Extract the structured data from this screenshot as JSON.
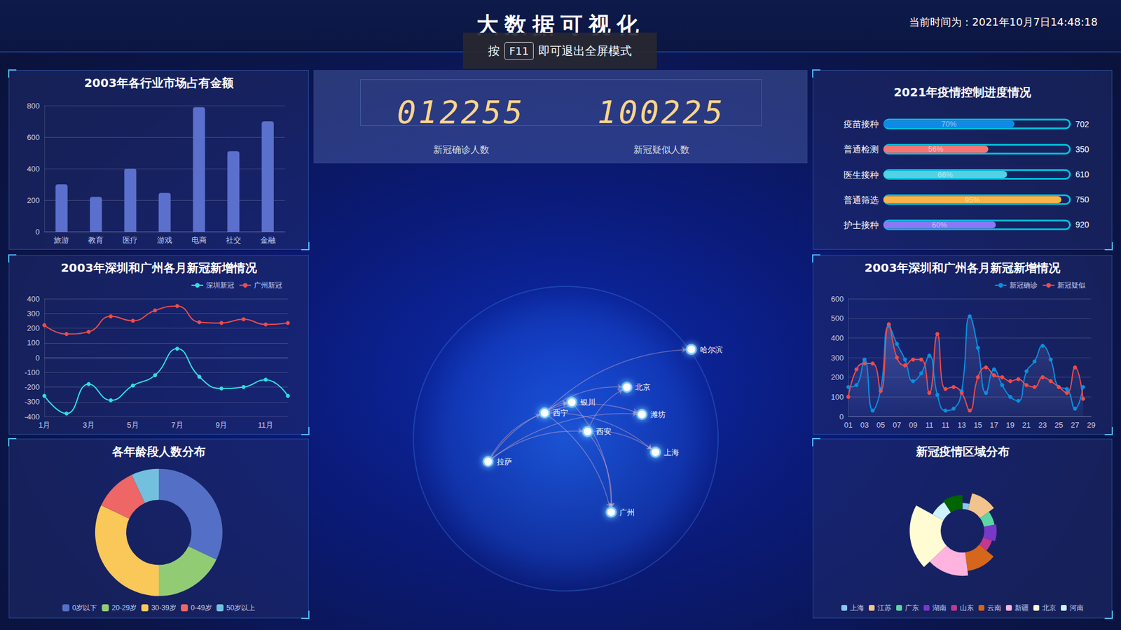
{
  "header": {
    "title": "大数据可视化",
    "time_label": "当前时间为：",
    "time": "2021年10月7日14:48:18",
    "notice": [
      "按",
      "F11",
      "即可退出全屏模式"
    ]
  },
  "counters": [
    {
      "value": "012255",
      "label": "新冠确诊人数"
    },
    {
      "value": "100225",
      "label": "新冠疑似人数"
    }
  ],
  "map": {
    "cities": [
      "哈尔滨",
      "北京",
      "银川",
      "西宁",
      "潍坊",
      "西安",
      "上海",
      "拉萨",
      "广州"
    ],
    "routes": [
      [
        "西宁",
        "哈尔滨"
      ],
      [
        "西宁",
        "北京"
      ],
      [
        "西宁",
        "银川"
      ],
      [
        "西宁",
        "潍坊"
      ],
      [
        "西宁",
        "上海"
      ],
      [
        "西宁",
        "广州"
      ],
      [
        "拉萨",
        "西宁"
      ],
      [
        "拉萨",
        "西安"
      ],
      [
        "拉萨",
        "银川"
      ],
      [
        "拉萨",
        "潍坊"
      ],
      [
        "西安",
        "北京"
      ],
      [
        "西安",
        "上海"
      ],
      [
        "西安",
        "广州"
      ],
      [
        "银川",
        "广州"
      ]
    ]
  },
  "chart_data": [
    {
      "type": "bar",
      "title": "2003年各行业市场占有金额",
      "categories": [
        "旅游",
        "教育",
        "医疗",
        "游戏",
        "电商",
        "社交",
        "金融"
      ],
      "values": [
        300,
        220,
        400,
        245,
        790,
        510,
        700
      ],
      "color": "#5b6fcc",
      "ylim": [
        0,
        800
      ],
      "yticks": [
        0,
        200,
        400,
        600,
        800
      ],
      "grid": true
    },
    {
      "type": "line",
      "title": "2003年深圳和广州各月新冠新增情况",
      "categories": [
        "1月",
        null,
        "3月",
        null,
        "5月",
        null,
        "7月",
        null,
        "9月",
        null,
        "11月",
        null
      ],
      "series": [
        {
          "name": "深圳新冠",
          "color": "#2fe0e0",
          "values": [
            -260,
            -380,
            -180,
            -290,
            -190,
            -120,
            60,
            -130,
            -210,
            -200,
            -150,
            -260
          ]
        },
        {
          "name": "广州新冠",
          "color": "#ef4b4b",
          "values": [
            220,
            160,
            175,
            280,
            250,
            320,
            350,
            240,
            235,
            260,
            225,
            235
          ]
        }
      ],
      "ylim": [
        -400,
        400
      ],
      "yticks": [
        -400,
        -300,
        -200,
        -100,
        0,
        100,
        200,
        300,
        400
      ],
      "grid": true,
      "legend": "top-right",
      "marker": "circle",
      "line_style": "smooth"
    },
    {
      "type": "pie",
      "title": "各年龄段人数分布",
      "categories": [
        "0岁以下",
        "20-29岁",
        "30-39岁",
        "0-49岁",
        "50岁以上"
      ],
      "values": [
        32,
        18,
        32,
        11,
        7
      ],
      "colors": [
        "#5470c6",
        "#91cc75",
        "#fac858",
        "#ee6666",
        "#73c0de"
      ],
      "legend": "bottom"
    },
    {
      "type": "bar",
      "orientation": "horizontal",
      "title": "2021年疫情控制进度情况",
      "categories": [
        "疫苗接种",
        "普通检测",
        "医生接种",
        "普通筛选",
        "护士接种"
      ],
      "values": [
        70,
        56,
        66,
        95,
        60
      ],
      "value_labels": [
        "70%",
        "56%",
        "66%",
        "95%",
        "60%"
      ],
      "data_labels": true,
      "totals": [
        702,
        350,
        610,
        750,
        920
      ],
      "colors": [
        "#1089e7",
        "#f57474",
        "#56d0e3",
        "#f8b448",
        "#8b78f6"
      ],
      "xlim": [
        0,
        100
      ],
      "tick_labels": "y",
      "grid": false
    },
    {
      "type": "line",
      "title": "2003年深圳和广州各月新冠新增情况",
      "categories": [
        "01",
        null,
        "03",
        null,
        "05",
        null,
        "07",
        null,
        "09",
        null,
        "11",
        null,
        "11",
        null,
        "13",
        null,
        "15",
        null,
        "17",
        null,
        "19",
        null,
        "21",
        null,
        "23",
        null,
        "25",
        null,
        "27",
        null,
        "29"
      ],
      "series": [
        {
          "name": "新冠确诊",
          "color": "#0b8fe0",
          "values": [
            150,
            160,
            290,
            30,
            140,
            460,
            370,
            290,
            180,
            220,
            310,
            110,
            30,
            40,
            130,
            510,
            350,
            120,
            240,
            160,
            100,
            80,
            230,
            280,
            360,
            290,
            150,
            140,
            40,
            150,
            null
          ]
        },
        {
          "name": "新冠疑似",
          "color": "#ef4b4b",
          "values": [
            100,
            240,
            270,
            270,
            130,
            470,
            300,
            260,
            290,
            290,
            120,
            420,
            140,
            150,
            120,
            30,
            200,
            250,
            210,
            200,
            180,
            190,
            160,
            150,
            200,
            180,
            150,
            120,
            250,
            90,
            null
          ]
        }
      ],
      "ylim": [
        0,
        600
      ],
      "yticks": [
        0,
        100,
        200,
        300,
        400,
        500,
        600
      ],
      "grid": true,
      "legend": "top-right",
      "marker": "circle",
      "line_style": "smooth"
    },
    {
      "type": "pie",
      "title": "新冠疫情区域分布",
      "categories": [
        "上海",
        "江苏",
        "广东",
        "湖南",
        "山东",
        "云南",
        "新疆",
        "北京",
        "河南",
        null
      ],
      "values": [
        4,
        11,
        7,
        8,
        6,
        12,
        15,
        20,
        8,
        9
      ],
      "colors": [
        "#8bc6f7",
        "#f2c38c",
        "#5cd6a4",
        "#7a38c6",
        "#c2398e",
        "#d5661c",
        "#ffb3de",
        "#fffcd4",
        "#cdf3ff",
        "#006400"
      ],
      "legend": "bottom",
      "marker": "rose"
    }
  ]
}
